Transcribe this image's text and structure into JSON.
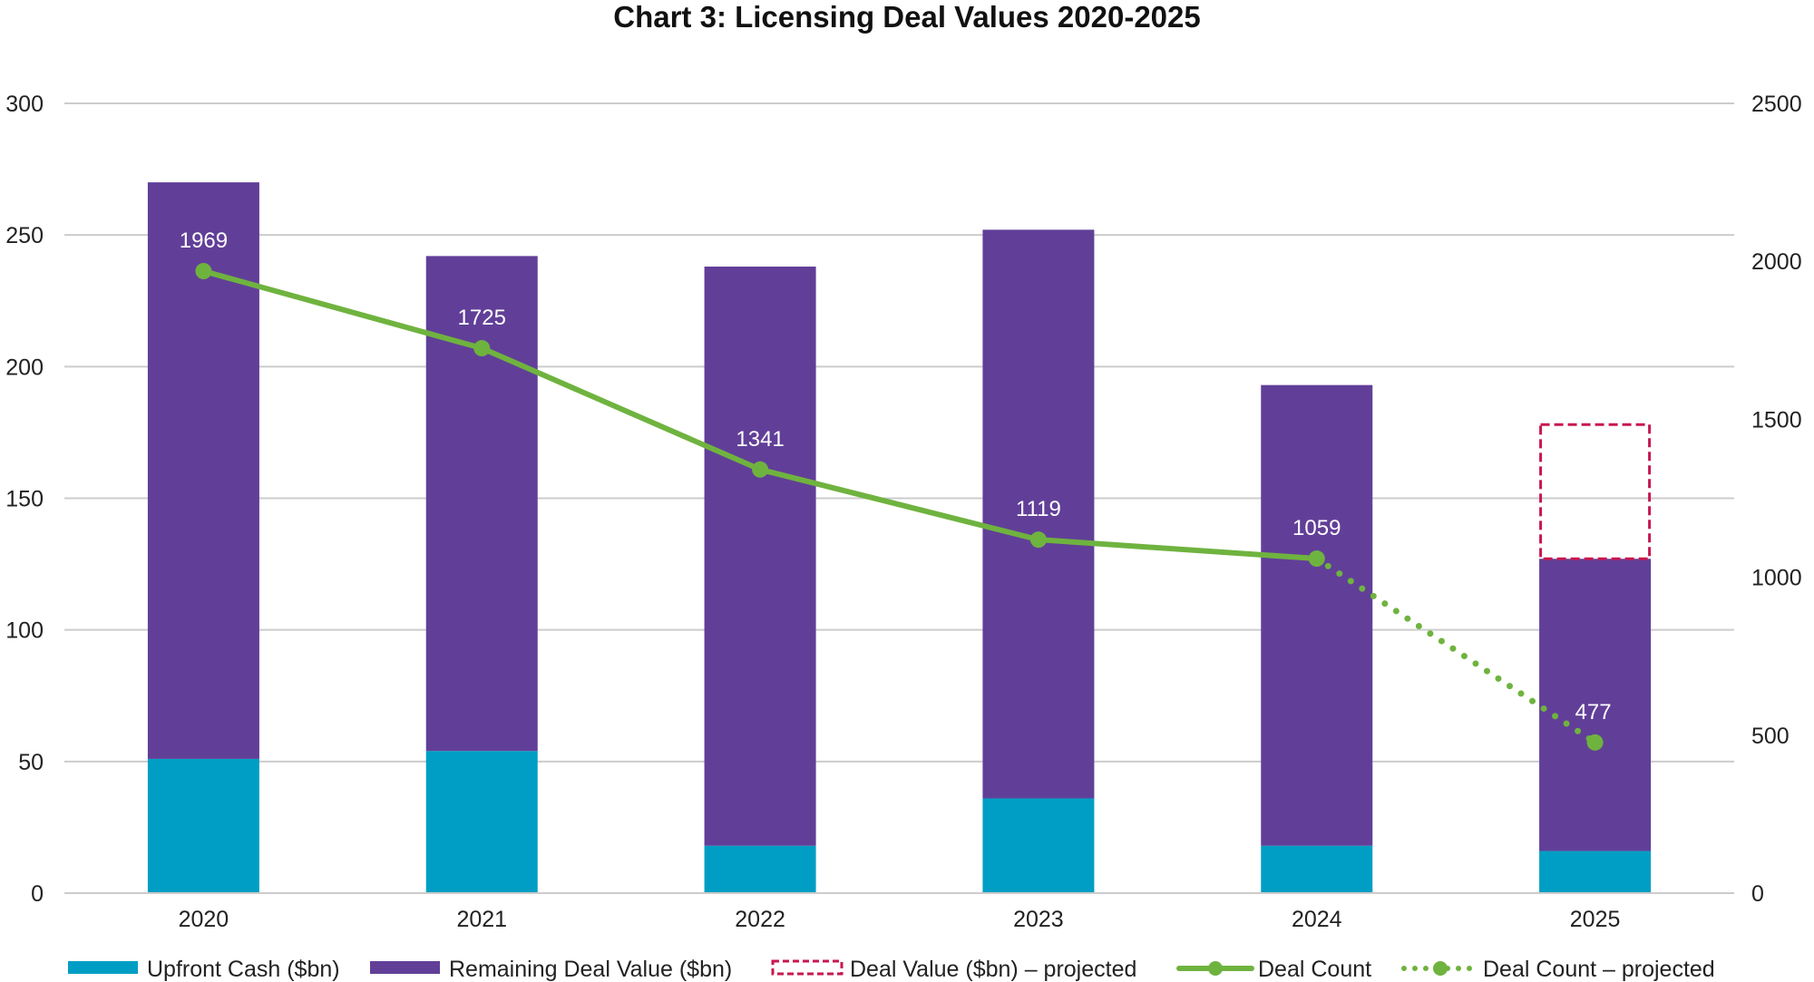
{
  "chart_data": {
    "type": "bar",
    "title": "Chart 3: Licensing Deal Values 2020-2025",
    "xlabel": "",
    "ylabel": "",
    "y2label": "",
    "categories": [
      "2020",
      "2021",
      "2022",
      "2023",
      "2024",
      "2025"
    ],
    "ylim": [
      0,
      300
    ],
    "yticks": [
      0,
      50,
      100,
      150,
      200,
      250,
      300
    ],
    "y2lim": [
      0,
      2500
    ],
    "y2ticks": [
      0,
      500,
      1000,
      1500,
      2000,
      2500
    ],
    "grid": true,
    "legend_position": "bottom",
    "series": [
      {
        "name": "Upfront Cash ($bn)",
        "kind": "stacked-bar",
        "axis": "left",
        "color": "#009ec4",
        "values": [
          51,
          54,
          18,
          36,
          18,
          16
        ]
      },
      {
        "name": "Remaining Deal Value ($bn)",
        "kind": "stacked-bar",
        "axis": "left",
        "color": "#613f98",
        "values": [
          219,
          188,
          220,
          216,
          175,
          111
        ]
      },
      {
        "name": "Deal Value ($bn) – projected",
        "kind": "stacked-bar-dashed",
        "axis": "left",
        "color": "#c8174f",
        "values": [
          null,
          null,
          null,
          null,
          null,
          51
        ]
      },
      {
        "name": "Deal Count",
        "kind": "line",
        "axis": "right",
        "color": "#6fb33f",
        "values": [
          1969,
          1725,
          1341,
          1119,
          1059,
          null
        ],
        "labels": [
          "1969",
          "1725",
          "1341",
          "1119",
          "1059",
          ""
        ]
      },
      {
        "name": "Deal Count – projected",
        "kind": "dotted-line",
        "axis": "right",
        "color": "#6fb33f",
        "values": [
          null,
          null,
          null,
          null,
          1059,
          477
        ],
        "labels": [
          "",
          "",
          "",
          "",
          "",
          "477"
        ]
      }
    ],
    "totals": [
      270,
      242,
      238,
      252,
      193,
      178
    ]
  },
  "legend": [
    {
      "label": "Upfront Cash ($bn)",
      "marker": "solid-box",
      "color": "#009ec4"
    },
    {
      "label": "Remaining Deal Value ($bn)",
      "marker": "solid-box",
      "color": "#613f98"
    },
    {
      "label": "Deal Value ($bn) – projected",
      "marker": "dashed-box",
      "color": "#c8174f"
    },
    {
      "label": "Deal Count",
      "marker": "line-dot",
      "color": "#6fb33f"
    },
    {
      "label": "Deal Count – projected",
      "marker": "dotted-line-dot",
      "color": "#6fb33f"
    }
  ],
  "colors": {
    "gridline": "#cccccc",
    "text": "#222222"
  }
}
